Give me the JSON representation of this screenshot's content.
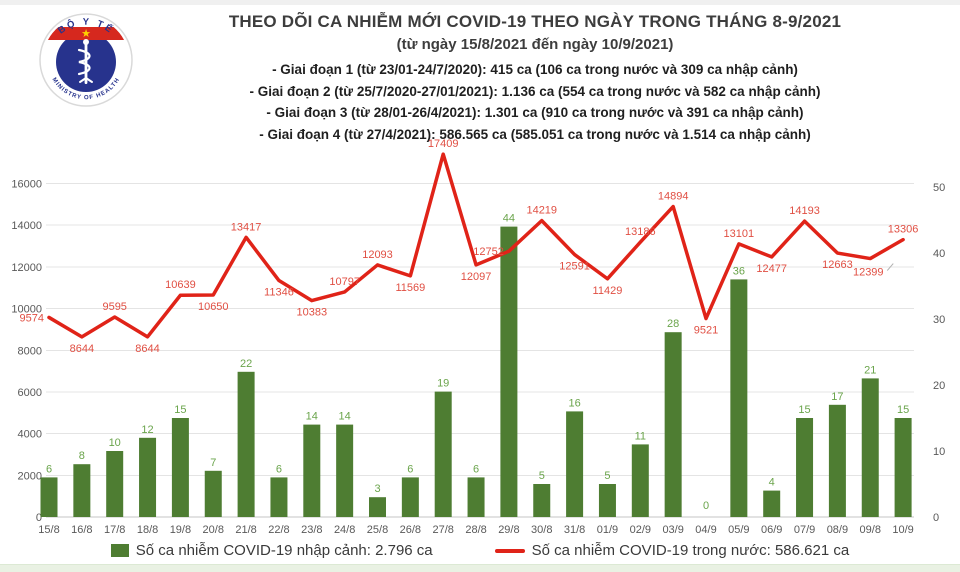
{
  "header": {
    "title": "THEO DÕI CA NHIỄM MỚI COVID-19 THEO NGÀY TRONG THÁNG 8-9/2021",
    "subtitle": "(từ ngày 15/8/2021 đến ngày 10/9/2021)",
    "phases": [
      "- Giai đoạn 1 (từ 23/01-24/7/2020): 415 ca (106 ca trong nước và 309 ca nhập cảnh)",
      "- Giai đoạn 2 (từ 25/7/2020-27/01/2021): 1.136 ca (554 ca trong nước và 582 ca nhập cảnh)",
      "- Giai đoạn 3 (từ 28/01-26/4/2021): 1.301 ca (910 ca trong nước và 391 ca nhập cảnh)",
      "- Giai đoạn 4 (từ 27/4/2021): 586.565 ca (585.051 ca trong nước và 1.514 ca nhập cảnh)"
    ]
  },
  "logo": {
    "top_text": "BỘ Y TẾ",
    "bottom_text": "MINISTRY OF HEALTH"
  },
  "legend": {
    "imported_label": "Số ca nhiễm COVID-19 nhập cảnh: 2.796 ca",
    "domestic_label": "Số ca nhiễm COVID-19 trong nước: 586.621 ca"
  },
  "colors": {
    "bar_green": "#4e7d32",
    "bar_label_green": "#6aa44b",
    "line_red": "#e02318",
    "line_label_red": "#e04f43",
    "axis_gray": "#595959",
    "grid_gray": "#e4e4e4",
    "baseline_gray": "#c4c4c4",
    "logo_navy": "#27338d",
    "logo_red": "#d6281e",
    "logo_star_yellow": "#ffd200"
  },
  "chart_data": {
    "type": "combo",
    "categories": [
      "15/8",
      "16/8",
      "17/8",
      "18/8",
      "19/8",
      "20/8",
      "21/8",
      "22/8",
      "23/8",
      "24/8",
      "25/8",
      "26/8",
      "27/8",
      "28/8",
      "29/8",
      "30/8",
      "31/8",
      "01/9",
      "02/9",
      "03/9",
      "04/9",
      "05/9",
      "06/9",
      "07/9",
      "08/9",
      "09/8",
      "10/9"
    ],
    "series": [
      {
        "name": "Số ca nhiễm COVID-19 nhập cảnh",
        "type": "bar",
        "axis": "right",
        "values": [
          6,
          8,
          10,
          12,
          15,
          7,
          22,
          6,
          14,
          14,
          3,
          6,
          19,
          6,
          44,
          5,
          16,
          5,
          11,
          28,
          0,
          36,
          4,
          15,
          17,
          21,
          15
        ]
      },
      {
        "name": "Số ca nhiễm COVID-19 trong nước",
        "type": "line",
        "axis": "left",
        "values": [
          9574,
          8644,
          9595,
          8644,
          10639,
          10650,
          13417,
          11346,
          10383,
          10797,
          12093,
          11569,
          17409,
          12097,
          12752,
          14219,
          12591,
          11429,
          13186,
          14894,
          9521,
          13101,
          12477,
          14193,
          12663,
          12399,
          13306
        ],
        "label_positions": [
          "left",
          "below",
          "above",
          "below",
          "above",
          "below",
          "above",
          "below",
          "below",
          "above",
          "above",
          "below",
          "above",
          "below",
          "left",
          "above",
          "below",
          "below",
          "above",
          "above",
          "below",
          "above",
          "below",
          "above",
          "below",
          "below-leader",
          "above"
        ]
      }
    ],
    "left_axis": {
      "ticks": [
        0,
        2000,
        4000,
        6000,
        8000,
        10000,
        12000,
        14000,
        16000
      ],
      "max": 16000
    },
    "right_axis": {
      "ticks": [
        0,
        10,
        20,
        30,
        40,
        50
      ],
      "max": 50
    },
    "grid": true,
    "legend_position": "bottom"
  }
}
